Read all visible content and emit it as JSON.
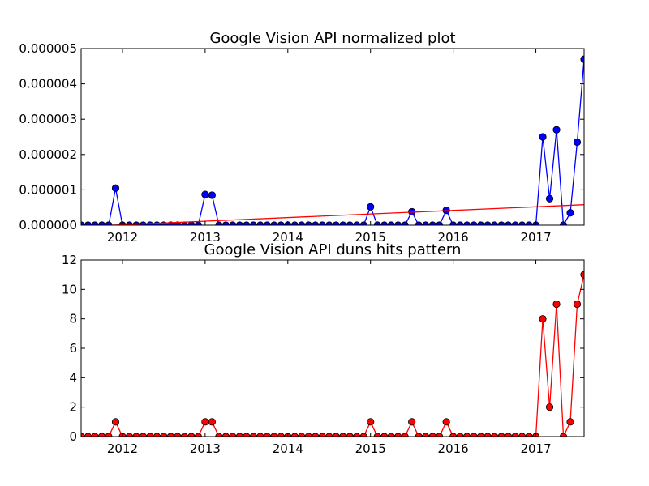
{
  "chart_data": [
    {
      "type": "line",
      "title": "Google Vision API normalized plot",
      "xlabel": "",
      "ylabel": "",
      "xlim": [
        "2011-07",
        "2017-08"
      ],
      "ylim": [
        0,
        5e-06
      ],
      "x_tick_labels": [
        "2012",
        "2013",
        "2014",
        "2015",
        "2016",
        "2017"
      ],
      "y_tick_labels": [
        "0.000000",
        "0.000001",
        "0.000002",
        "0.000003",
        "0.000004",
        "0.000005"
      ],
      "grid": false,
      "series": [
        {
          "style": "line-with-circle-markers",
          "color": "#0000ff",
          "x": [
            "2011-07",
            "2011-08",
            "2011-09",
            "2011-10",
            "2011-11",
            "2011-12",
            "2012-01",
            "2012-02",
            "2012-03",
            "2012-04",
            "2012-05",
            "2012-06",
            "2012-07",
            "2012-08",
            "2012-09",
            "2012-10",
            "2012-11",
            "2012-12",
            "2013-01",
            "2013-02",
            "2013-03",
            "2013-04",
            "2013-05",
            "2013-06",
            "2013-07",
            "2013-08",
            "2013-09",
            "2013-10",
            "2013-11",
            "2013-12",
            "2014-01",
            "2014-02",
            "2014-03",
            "2014-04",
            "2014-05",
            "2014-06",
            "2014-07",
            "2014-08",
            "2014-09",
            "2014-10",
            "2014-11",
            "2014-12",
            "2015-01",
            "2015-02",
            "2015-03",
            "2015-04",
            "2015-05",
            "2015-06",
            "2015-07",
            "2015-08",
            "2015-09",
            "2015-10",
            "2015-11",
            "2015-12",
            "2016-01",
            "2016-02",
            "2016-03",
            "2016-04",
            "2016-05",
            "2016-06",
            "2016-07",
            "2016-08",
            "2016-09",
            "2016-10",
            "2016-11",
            "2016-12",
            "2017-01",
            "2017-02",
            "2017-03",
            "2017-04",
            "2017-05",
            "2017-06",
            "2017-07",
            "2017-08"
          ],
          "values": [
            0,
            0,
            0,
            0,
            0,
            1.05e-06,
            0,
            0,
            0,
            0,
            0,
            0,
            0,
            0,
            0,
            0,
            0,
            0,
            8.7e-07,
            8.5e-07,
            0,
            0,
            0,
            0,
            0,
            0,
            0,
            0,
            0,
            0,
            0,
            0,
            0,
            0,
            0,
            0,
            0,
            0,
            0,
            0,
            0,
            0,
            5.2e-07,
            0,
            0,
            0,
            0,
            0,
            3.8e-07,
            0,
            0,
            0,
            0,
            4.2e-07,
            0,
            0,
            0,
            0,
            0,
            0,
            0,
            0,
            0,
            0,
            0,
            0,
            0,
            2.5e-06,
            7.5e-07,
            2.7e-06,
            0,
            3.5e-07,
            2.35e-06,
            4.7e-06
          ]
        },
        {
          "style": "trend-line",
          "color": "#ff0000",
          "x": [
            "2011-07",
            "2017-08"
          ],
          "values": [
            -4e-08,
            5.8e-07
          ]
        }
      ]
    },
    {
      "type": "line",
      "title": "Google Vision API duns hits pattern",
      "xlabel": "",
      "ylabel": "",
      "xlim": [
        "2011-07",
        "2017-08"
      ],
      "ylim": [
        0,
        12
      ],
      "x_tick_labels": [
        "2012",
        "2013",
        "2014",
        "2015",
        "2016",
        "2017"
      ],
      "y_tick_labels": [
        "0",
        "2",
        "4",
        "6",
        "8",
        "10",
        "12"
      ],
      "grid": false,
      "series": [
        {
          "style": "line-with-circle-markers",
          "color": "#ff0000",
          "x": [
            "2011-07",
            "2011-08",
            "2011-09",
            "2011-10",
            "2011-11",
            "2011-12",
            "2012-01",
            "2012-02",
            "2012-03",
            "2012-04",
            "2012-05",
            "2012-06",
            "2012-07",
            "2012-08",
            "2012-09",
            "2012-10",
            "2012-11",
            "2012-12",
            "2013-01",
            "2013-02",
            "2013-03",
            "2013-04",
            "2013-05",
            "2013-06",
            "2013-07",
            "2013-08",
            "2013-09",
            "2013-10",
            "2013-11",
            "2013-12",
            "2014-01",
            "2014-02",
            "2014-03",
            "2014-04",
            "2014-05",
            "2014-06",
            "2014-07",
            "2014-08",
            "2014-09",
            "2014-10",
            "2014-11",
            "2014-12",
            "2015-01",
            "2015-02",
            "2015-03",
            "2015-04",
            "2015-05",
            "2015-06",
            "2015-07",
            "2015-08",
            "2015-09",
            "2015-10",
            "2015-11",
            "2015-12",
            "2016-01",
            "2016-02",
            "2016-03",
            "2016-04",
            "2016-05",
            "2016-06",
            "2016-07",
            "2016-08",
            "2016-09",
            "2016-10",
            "2016-11",
            "2016-12",
            "2017-01",
            "2017-02",
            "2017-03",
            "2017-04",
            "2017-05",
            "2017-06",
            "2017-07",
            "2017-08"
          ],
          "values": [
            0,
            0,
            0,
            0,
            0,
            1,
            0,
            0,
            0,
            0,
            0,
            0,
            0,
            0,
            0,
            0,
            0,
            0,
            1,
            1,
            0,
            0,
            0,
            0,
            0,
            0,
            0,
            0,
            0,
            0,
            0,
            0,
            0,
            0,
            0,
            0,
            0,
            0,
            0,
            0,
            0,
            0,
            1,
            0,
            0,
            0,
            0,
            0,
            1,
            0,
            0,
            0,
            0,
            1,
            0,
            0,
            0,
            0,
            0,
            0,
            0,
            0,
            0,
            0,
            0,
            0,
            0,
            8,
            2,
            9,
            0,
            1,
            9,
            11
          ]
        }
      ]
    }
  ]
}
